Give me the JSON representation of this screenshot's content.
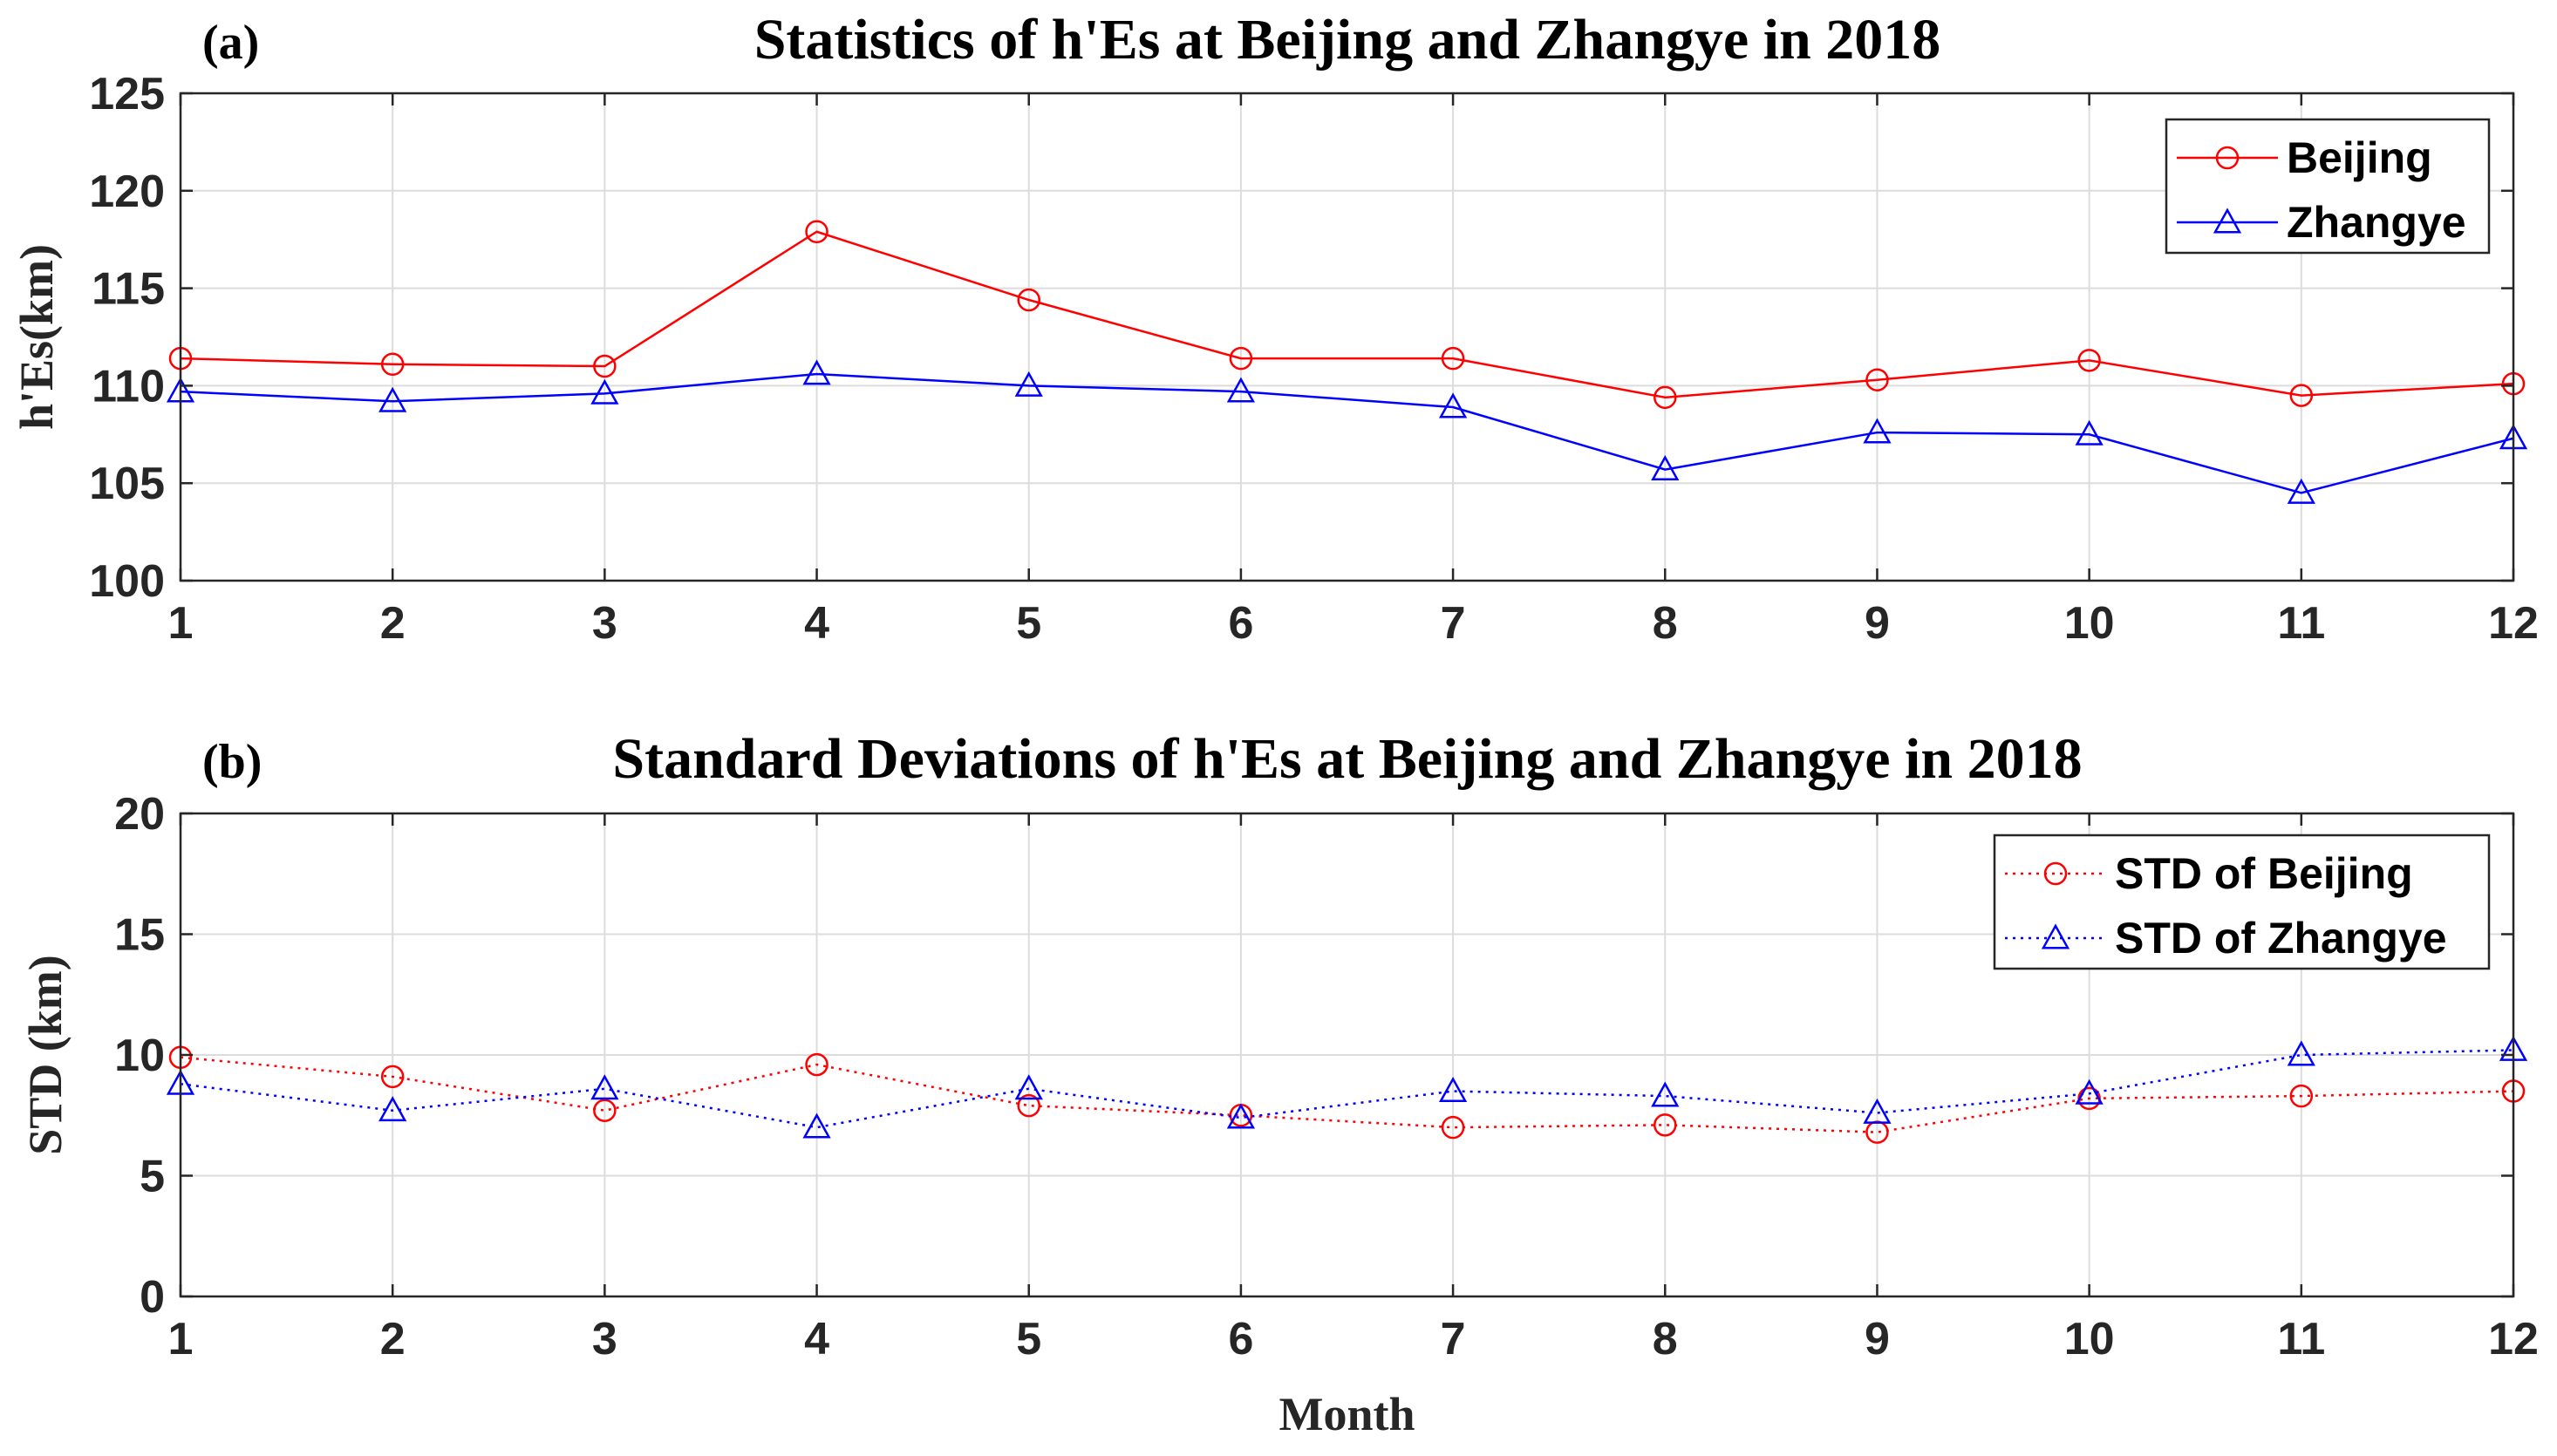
{
  "chart_data": [
    {
      "type": "line",
      "panel_label": "(a)",
      "title": "Statistics of h'Es at Beijing and Zhangye in 2018",
      "xlabel": "",
      "ylabel": "h'Es(km)",
      "x": [
        1,
        2,
        3,
        4,
        5,
        6,
        7,
        8,
        9,
        10,
        11,
        12
      ],
      "xlim": [
        1,
        12
      ],
      "ylim": [
        100,
        125
      ],
      "xticks": [
        1,
        2,
        3,
        4,
        5,
        6,
        7,
        8,
        9,
        10,
        11,
        12
      ],
      "yticks": [
        100,
        105,
        110,
        115,
        120,
        125
      ],
      "grid": true,
      "legend_position": "top-right",
      "series": [
        {
          "name": "Beijing",
          "color": "#ff0000",
          "marker": "circle",
          "linestyle": "solid",
          "values": [
            111.4,
            111.1,
            111.0,
            117.9,
            114.4,
            111.4,
            111.4,
            109.4,
            110.3,
            111.3,
            109.5,
            110.1
          ]
        },
        {
          "name": "Zhangye",
          "color": "#0000ff",
          "marker": "triangle",
          "linestyle": "solid",
          "values": [
            109.7,
            109.2,
            109.6,
            110.6,
            110.0,
            109.7,
            108.9,
            105.7,
            107.6,
            107.5,
            104.5,
            107.3
          ]
        }
      ]
    },
    {
      "type": "line",
      "panel_label": "(b)",
      "title": "Standard Deviations of h'Es at Beijing and Zhangye in 2018",
      "xlabel": "Month",
      "ylabel": "STD (km)",
      "x": [
        1,
        2,
        3,
        4,
        5,
        6,
        7,
        8,
        9,
        10,
        11,
        12
      ],
      "xlim": [
        1,
        12
      ],
      "ylim": [
        0,
        20
      ],
      "xticks": [
        1,
        2,
        3,
        4,
        5,
        6,
        7,
        8,
        9,
        10,
        11,
        12
      ],
      "yticks": [
        0,
        5,
        10,
        15,
        20
      ],
      "grid": true,
      "legend_position": "top-right",
      "series": [
        {
          "name": "STD of Beijing",
          "color": "#ff0000",
          "marker": "circle",
          "linestyle": "dotted",
          "values": [
            9.9,
            9.1,
            7.7,
            9.6,
            7.9,
            7.5,
            7.0,
            7.1,
            6.8,
            8.2,
            8.3,
            8.5
          ]
        },
        {
          "name": "STD of Zhangye",
          "color": "#0000ff",
          "marker": "triangle",
          "linestyle": "dotted",
          "values": [
            8.8,
            7.7,
            8.6,
            7.0,
            8.6,
            7.4,
            8.5,
            8.3,
            7.6,
            8.4,
            10.0,
            10.2
          ]
        }
      ]
    }
  ]
}
